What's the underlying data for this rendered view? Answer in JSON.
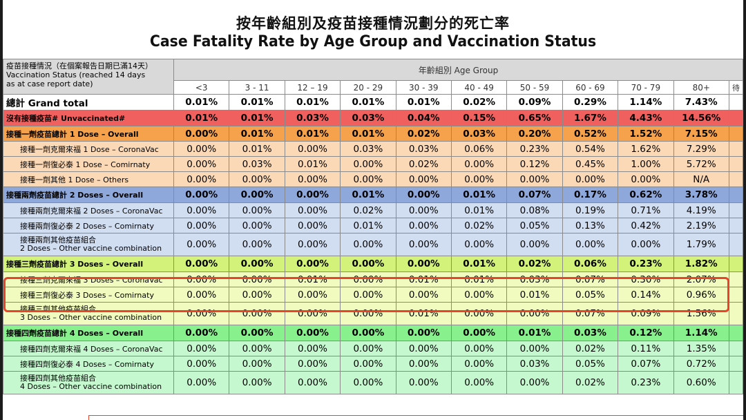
{
  "title": {
    "zh": "按年齡組別及疫苗接種情況劃分的死亡率",
    "en": "Case Fatality Rate by Age Group and Vaccination Status"
  },
  "header": {
    "status_label_zh": "疫苗接種情況（在個案報告日期已滿14天）",
    "status_label_en_1": "Vaccination Status (reached 14 days",
    "status_label_en_2": "as at case report date)",
    "age_group": "年齡組別 Age Group",
    "age_columns": [
      "<3",
      "3 - 11",
      "12 – 19",
      "20 - 29",
      "30 - 39",
      "40 - 49",
      "50 - 59",
      "60 - 69",
      "70 - 79",
      "80+"
    ],
    "extra_column": "待"
  },
  "rows": [
    {
      "label": "總計 Grand total",
      "values": [
        "0.01%",
        "0.01%",
        "0.01%",
        "0.01%",
        "0.01%",
        "0.02%",
        "0.09%",
        "0.29%",
        "1.14%",
        "7.43%"
      ]
    },
    {
      "label": "沒有接種疫苗# Unvaccinated#",
      "values": [
        "0.01%",
        "0.01%",
        "0.03%",
        "0.03%",
        "0.04%",
        "0.15%",
        "0.65%",
        "1.67%",
        "4.43%",
        "14.56%"
      ]
    },
    {
      "label": "接種一劑疫苗總計 1 Dose – Overall",
      "values": [
        "0.00%",
        "0.01%",
        "0.01%",
        "0.01%",
        "0.02%",
        "0.03%",
        "0.20%",
        "0.52%",
        "1.52%",
        "7.15%"
      ]
    },
    {
      "label": "接種一劑克爾來福 1 Dose – CoronaVac",
      "values": [
        "0.00%",
        "0.01%",
        "0.00%",
        "0.03%",
        "0.03%",
        "0.06%",
        "0.23%",
        "0.54%",
        "1.62%",
        "7.29%"
      ]
    },
    {
      "label": "接種一劑復必泰 1 Dose – Comirnaty",
      "values": [
        "0.00%",
        "0.03%",
        "0.01%",
        "0.00%",
        "0.02%",
        "0.00%",
        "0.12%",
        "0.45%",
        "1.00%",
        "5.72%"
      ]
    },
    {
      "label": "接種一劑其他 1 Dose – Others",
      "values": [
        "0.00%",
        "0.00%",
        "0.00%",
        "0.00%",
        "0.00%",
        "0.00%",
        "0.00%",
        "0.00%",
        "0.00%",
        "N/A"
      ]
    },
    {
      "label": "接種兩劑疫苗總計 2 Doses – Overall",
      "values": [
        "0.00%",
        "0.00%",
        "0.00%",
        "0.01%",
        "0.00%",
        "0.01%",
        "0.07%",
        "0.17%",
        "0.62%",
        "3.78%"
      ]
    },
    {
      "label": "接種兩劑克爾來福 2 Doses – CoronaVac",
      "values": [
        "0.00%",
        "0.00%",
        "0.00%",
        "0.02%",
        "0.00%",
        "0.01%",
        "0.08%",
        "0.19%",
        "0.71%",
        "4.19%"
      ]
    },
    {
      "label": "接種兩劑復必泰 2 Doses – Comirnaty",
      "values": [
        "0.00%",
        "0.00%",
        "0.00%",
        "0.01%",
        "0.00%",
        "0.02%",
        "0.05%",
        "0.13%",
        "0.42%",
        "2.19%"
      ]
    },
    {
      "label_1": "接種兩劑其他疫苗組合",
      "label_2": "2 Doses – Other vaccine combination",
      "values": [
        "0.00%",
        "0.00%",
        "0.00%",
        "0.00%",
        "0.00%",
        "0.00%",
        "0.00%",
        "0.00%",
        "0.00%",
        "1.79%"
      ]
    },
    {
      "label": "接種三劑疫苗總計 3 Doses – Overall",
      "values": [
        "0.00%",
        "0.00%",
        "0.00%",
        "0.00%",
        "0.00%",
        "0.01%",
        "0.02%",
        "0.06%",
        "0.23%",
        "1.82%"
      ]
    },
    {
      "label": "接種三劑克爾來福 3 Doses – CoronaVac",
      "values": [
        "0.00%",
        "0.00%",
        "0.01%",
        "0.00%",
        "0.01%",
        "0.01%",
        "0.03%",
        "0.07%",
        "0.30%",
        "2.07%"
      ]
    },
    {
      "label": "接種三劑復必泰 3 Doses – Comirnaty",
      "values": [
        "0.00%",
        "0.00%",
        "0.00%",
        "0.00%",
        "0.00%",
        "0.00%",
        "0.01%",
        "0.05%",
        "0.14%",
        "0.96%"
      ]
    },
    {
      "label_1": "接種三劑其他疫苗組合",
      "label_2": "3 Doses – Other vaccine combination",
      "values": [
        "0.00%",
        "0.00%",
        "0.00%",
        "0.00%",
        "0.01%",
        "0.00%",
        "0.00%",
        "0.07%",
        "0.09%",
        "1.56%"
      ]
    },
    {
      "label": "接種四劑疫苗總計 4 Doses – Overall",
      "values": [
        "0.00%",
        "0.00%",
        "0.00%",
        "0.00%",
        "0.00%",
        "0.00%",
        "0.01%",
        "0.03%",
        "0.12%",
        "1.14%"
      ]
    },
    {
      "label": "接種四劑克爾來福 4 Doses – CoronaVac",
      "values": [
        "0.00%",
        "0.00%",
        "0.00%",
        "0.00%",
        "0.00%",
        "0.00%",
        "0.00%",
        "0.02%",
        "0.11%",
        "1.35%"
      ]
    },
    {
      "label": "接種四劑復必泰 4 Doses – Comirnaty",
      "values": [
        "0.00%",
        "0.00%",
        "0.00%",
        "0.00%",
        "0.00%",
        "0.00%",
        "0.03%",
        "0.05%",
        "0.07%",
        "0.72%"
      ]
    },
    {
      "label_1": "接種四劑其他疫苗組合",
      "label_2": "4 Doses – Other vaccine combination",
      "values": [
        "0.00%",
        "0.00%",
        "0.00%",
        "0.00%",
        "0.00%",
        "0.00%",
        "0.00%",
        "0.02%",
        "0.23%",
        "0.60%"
      ]
    }
  ],
  "colors": {
    "grand": "#ffffff",
    "unvaccinated": "#f0605e",
    "dose1_overall": "#f6a14b",
    "dose1_sub": "#fbd9b7",
    "dose2_overall": "#8fa8db",
    "dose2_sub": "#d1ddf0",
    "dose3_overall": "#d3f27a",
    "dose3_sub": "#f2fbbf",
    "dose4_overall": "#88f08d",
    "dose4_sub": "#c6f8cf",
    "highlight": "#e6452b"
  }
}
